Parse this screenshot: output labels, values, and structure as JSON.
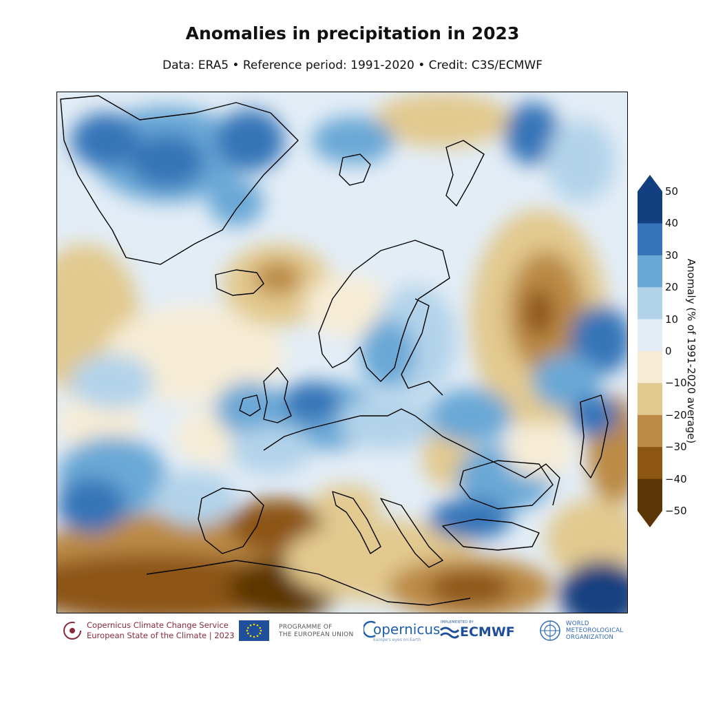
{
  "title": "Anomalies in precipitation in 2023",
  "subtitle": "Data: ERA5 • Reference period: 1991-2020 • Credit: C3S/ECMWF",
  "colorbar": {
    "label": "Anomaly (% of 1991-2020 average)",
    "ticks": [
      "50",
      "40",
      "30",
      "20",
      "10",
      "0",
      "−10",
      "−20",
      "−30",
      "−40",
      "−50"
    ],
    "bins": [
      {
        "from": -50,
        "to": -40,
        "color": "#5c3506"
      },
      {
        "from": -40,
        "to": -30,
        "color": "#8c5512"
      },
      {
        "from": -30,
        "to": -20,
        "color": "#bb8a45"
      },
      {
        "from": -20,
        "to": -10,
        "color": "#e2c98f"
      },
      {
        "from": -10,
        "to": 0,
        "color": "#f6ecd6"
      },
      {
        "from": 0,
        "to": 10,
        "color": "#e3edf6"
      },
      {
        "from": 10,
        "to": 20,
        "color": "#b3d3ea"
      },
      {
        "from": 20,
        "to": 30,
        "color": "#6aa8d6"
      },
      {
        "from": 30,
        "to": 40,
        "color": "#3574b8"
      },
      {
        "from": 40,
        "to": 50,
        "color": "#123f7f"
      }
    ],
    "extend": "both"
  },
  "map": {
    "variable": "precipitation anomaly",
    "region": "Europe",
    "year": 2023
  },
  "footer": {
    "c3s_line1": "Copernicus Climate Change Service",
    "c3s_line2": "European State of the Climate | 2023",
    "eu_line1": "PROGRAMME OF",
    "eu_line2": "THE EUROPEAN UNION",
    "copernicus": "opernicus",
    "copernicus_tag": "Europe's eyes on Earth",
    "ecmwf_small": "IMPLEMENTED BY",
    "ecmwf": "ECMWF",
    "wmo_line1": "WORLD",
    "wmo_line2": "METEOROLOGICAL",
    "wmo_line3": "ORGANIZATION"
  }
}
